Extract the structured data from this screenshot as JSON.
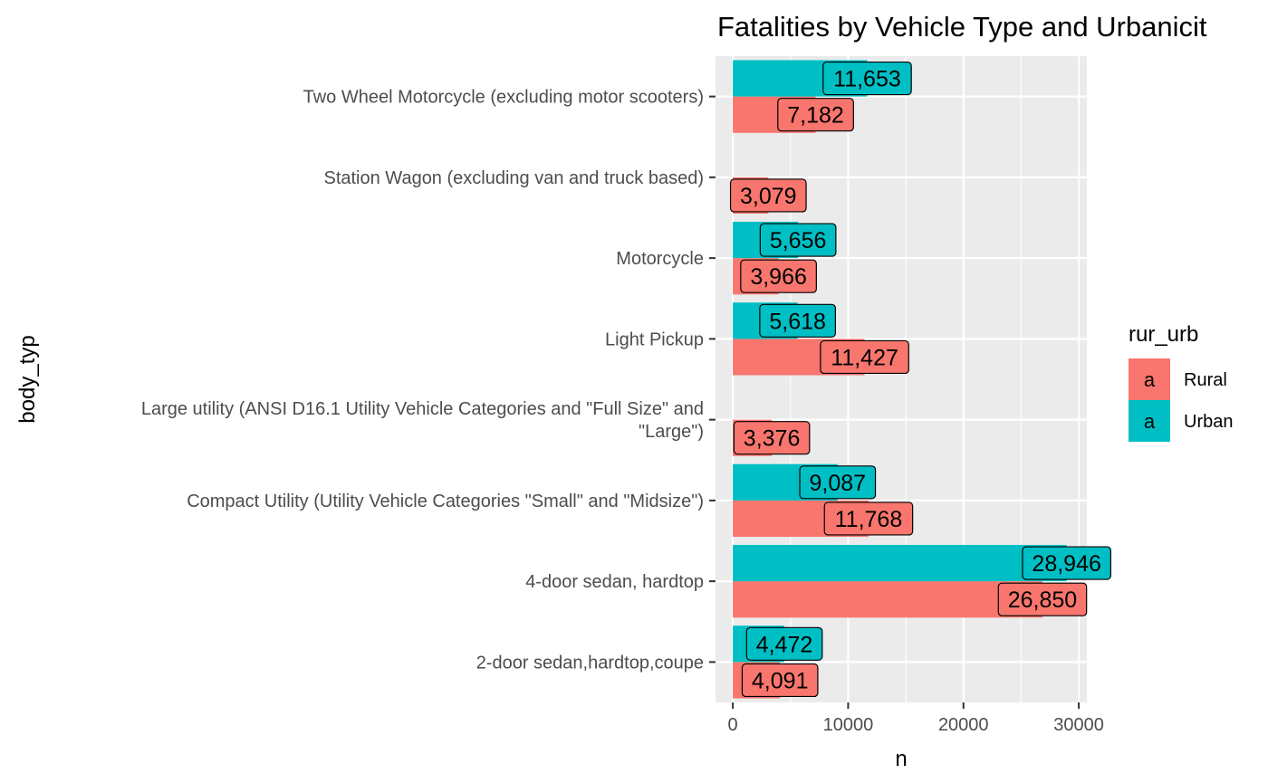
{
  "chart_data": {
    "type": "bar",
    "orientation": "horizontal",
    "title": "Fatalities by Vehicle Type and Urbanicit",
    "xlabel": "n",
    "ylabel": "body_typ",
    "xlim": [
      -1500,
      30700
    ],
    "xticks": [
      0,
      10000,
      20000,
      30000
    ],
    "xtick_labels": [
      "0",
      "10000",
      "20000",
      "30000"
    ],
    "grid": true,
    "legend": {
      "title": "rur_urb",
      "placement": "right",
      "key_glyph": "a",
      "entries": [
        {
          "name": "Rural",
          "color": "#F8766D"
        },
        {
          "name": "Urban",
          "color": "#00BFC4"
        }
      ]
    },
    "categories": [
      "2-door sedan,hardtop,coupe",
      "4-door sedan, hardtop",
      "Compact Utility (Utility Vehicle Categories \"Small\" and \"Midsize\")",
      "Large utility (ANSI D16.1 Utility Vehicle Categories and \"Full Size\" and \"Large\")",
      "Light Pickup",
      "Motorcycle",
      "Station Wagon (excluding van and truck based)",
      "Two Wheel Motorcycle (excluding motor scooters)"
    ],
    "category_lines": [
      [
        "2-door sedan,hardtop,coupe"
      ],
      [
        "4-door sedan, hardtop"
      ],
      [
        "Compact Utility (Utility Vehicle Categories \"Small\" and \"Midsize\")"
      ],
      [
        "Large utility (ANSI D16.1 Utility Vehicle Categories and \"Full Size\" and",
        "\"Large\")"
      ],
      [
        "Light Pickup"
      ],
      [
        "Motorcycle"
      ],
      [
        "Station Wagon (excluding van and truck based)"
      ],
      [
        "Two Wheel Motorcycle (excluding motor scooters)"
      ]
    ],
    "series": [
      {
        "name": "Rural",
        "color": "#F8766D",
        "values": [
          4091,
          26850,
          11768,
          3376,
          11427,
          3966,
          3079,
          7182
        ],
        "labels": [
          "4,091",
          "26,850",
          "11,768",
          "3,376",
          "11,427",
          "3,966",
          "3,079",
          "7,182"
        ]
      },
      {
        "name": "Urban",
        "color": "#00BFC4",
        "values": [
          4472,
          28946,
          9087,
          null,
          5618,
          5656,
          null,
          11653
        ],
        "labels": [
          "4,472",
          "28,946",
          "9,087",
          null,
          "5,618",
          "5,656",
          null,
          "11,653"
        ]
      }
    ],
    "colors": {
      "panel_background": "#EBEBEB",
      "grid_major": "#FFFFFF",
      "text": "#000000",
      "tick_text": "#4D4D4D",
      "tick_mark": "#333333"
    }
  }
}
